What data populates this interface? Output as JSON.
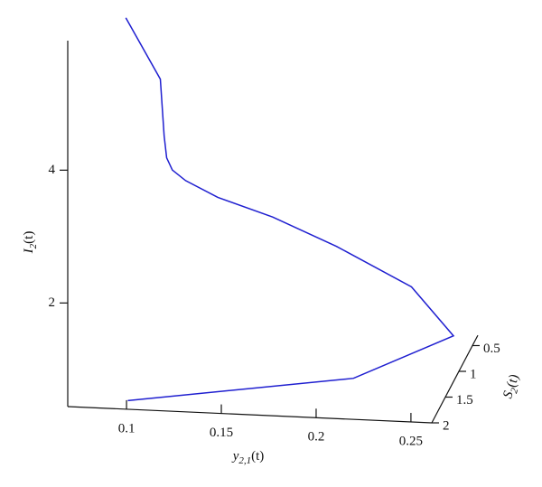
{
  "chart_data": {
    "type": "line3d",
    "xlabel": [
      "y",
      "2,1",
      "(t)"
    ],
    "ylabel": [
      "S",
      "2",
      "(t)"
    ],
    "zlabel": [
      "I",
      "2",
      "(t)"
    ],
    "series": [
      {
        "color": "#1f1fd0",
        "x": [
          0.1007,
          0.214,
          0.261,
          0.236,
          0.195,
          0.1606,
          0.131,
          0.114,
          0.107,
          0.104,
          0.1027,
          0.1007,
          0.0825
        ],
        "y": [
          2,
          1.6,
          1.2,
          1.0,
          0.9,
          0.85,
          0.8,
          0.8,
          0.8,
          0.8,
          0.8,
          0.8,
          0.8
        ],
        "z": [
          0.57,
          0.74,
          1.13,
          1.68,
          2.16,
          2.52,
          2.74,
          2.97,
          3.12,
          3.3,
          3.63,
          4.48,
          5.38
        ]
      }
    ],
    "xlim": [
      0.069,
      0.261
    ],
    "xticks": [
      0.1,
      0.15,
      0.2,
      0.25
    ],
    "ylim": [
      2,
      0.3
    ],
    "yticks": [
      0.5,
      1,
      1.5,
      2
    ],
    "zlim": [
      0.44,
      5.95
    ],
    "zticks": [
      2,
      4
    ]
  }
}
